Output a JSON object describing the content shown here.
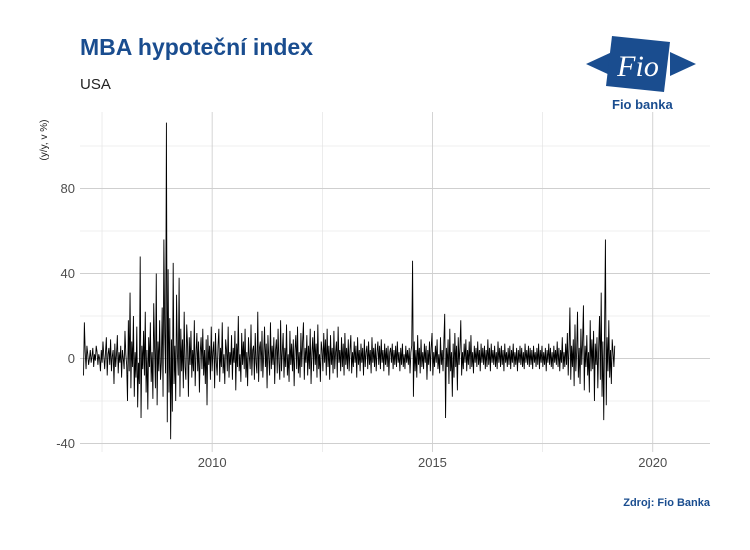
{
  "header": {
    "title": "MBA hypoteční index",
    "subtitle": "USA"
  },
  "logo": {
    "mark_text": "Fio",
    "caption": "Fio banka",
    "color": "#1a4d8f"
  },
  "footer": {
    "source": "Zdroj: Fio Banka"
  },
  "chart_data": {
    "type": "line",
    "ylabel": "(y/y, v %)",
    "xlim": [
      2007.0,
      2021.3
    ],
    "ylim": [
      -44,
      116
    ],
    "x_ticks": [
      2010,
      2015,
      2020
    ],
    "y_ticks": [
      -40,
      0,
      40,
      80
    ],
    "grid": true,
    "line_color": "#000000",
    "series": [
      {
        "step_years": 0.0192,
        "x_start": 2007.08,
        "values": [
          -8,
          17,
          3,
          -5,
          6,
          2,
          -3,
          0,
          4,
          -2,
          1,
          5,
          -4,
          2,
          -1,
          6,
          3,
          -3,
          2,
          0,
          -6,
          4,
          -2,
          8,
          1,
          -5,
          3,
          10,
          -8,
          2,
          5,
          -3,
          9,
          -6,
          1,
          4,
          -12,
          7,
          -4,
          2,
          11,
          -7,
          3,
          -2,
          6,
          -9,
          4,
          0,
          -5,
          13,
          2,
          -3,
          -20,
          18,
          -6,
          31,
          -14,
          8,
          -4,
          20,
          -18,
          3,
          -9,
          15,
          -23,
          -2,
          -12,
          48,
          -28,
          6,
          -5,
          13,
          -8,
          22,
          -16,
          4,
          -24,
          10,
          -4,
          17,
          -11,
          3,
          -19,
          26,
          5,
          -14,
          40,
          -22,
          8,
          -6,
          18,
          -10,
          -2,
          24,
          -18,
          56,
          12,
          -7,
          111,
          -30,
          42,
          -16,
          19,
          -38,
          9,
          -25,
          45,
          -12,
          6,
          -20,
          30,
          2,
          -8,
          38,
          -18,
          14,
          -6,
          9,
          -14,
          22,
          -4,
          -10,
          16,
          6,
          -18,
          10,
          -3,
          13,
          -9,
          4,
          -6,
          18,
          -13,
          2,
          12,
          -6,
          8,
          -16,
          3,
          10,
          -5,
          14,
          -8,
          4,
          -12,
          9,
          -22,
          11,
          -3,
          6,
          -10,
          15,
          -6,
          3,
          8,
          -14,
          12,
          -2,
          -8,
          6,
          14,
          -11,
          5,
          -4,
          17,
          -7,
          2,
          -12,
          9,
          4,
          -6,
          15,
          -9,
          3,
          -3,
          11,
          -10,
          5,
          -2,
          13,
          -15,
          7,
          -4,
          20,
          -6,
          2,
          -11,
          12,
          -3,
          8,
          -5,
          14,
          -9,
          3,
          -13,
          10,
          1,
          -5,
          16,
          -8,
          4,
          6,
          -10,
          12,
          -2,
          -7,
          22,
          -11,
          5,
          8,
          -6,
          13,
          -9,
          2,
          15,
          -4,
          7,
          -14,
          11,
          0,
          -8,
          17,
          -5,
          6,
          -3,
          10,
          -12,
          4,
          9,
          -7,
          14,
          -2,
          -10,
          18,
          -6,
          3,
          12,
          -9,
          5,
          -4,
          16,
          -8,
          2,
          -11,
          13,
          -3,
          7,
          -6,
          9,
          -13,
          4,
          11,
          -5,
          15,
          -7,
          3,
          -9,
          12,
          -4,
          8,
          17,
          -10,
          5,
          -2,
          11,
          -8,
          6,
          -5,
          14,
          -12,
          3,
          10,
          -6,
          13,
          -3,
          7,
          -9,
          16,
          -5,
          2,
          -11,
          8,
          4,
          -6,
          12,
          -2,
          9,
          -8,
          14,
          -4,
          6,
          -10,
          11,
          -3,
          5,
          -7,
          13,
          -5,
          3,
          8,
          -9,
          15,
          -2,
          4,
          -6,
          10,
          -4,
          7,
          -8,
          12,
          -3,
          5,
          -5,
          9,
          -6,
          4,
          11,
          -7,
          3,
          -4,
          8,
          -2,
          6,
          -9,
          10,
          -3,
          4,
          -6,
          7,
          -2,
          5,
          -8,
          9,
          -4,
          3,
          6,
          -5,
          8,
          -3,
          4,
          -7,
          10,
          -2,
          5,
          -4,
          7,
          -6,
          3,
          8,
          -3,
          6,
          -5,
          9,
          -2,
          4,
          -6,
          7,
          -3,
          5,
          -4,
          6,
          -8,
          3,
          5,
          -2,
          7,
          -5,
          4,
          -3,
          6,
          -4,
          8,
          -2,
          3,
          -6,
          5,
          -3,
          7,
          -4,
          2,
          -5,
          6,
          -2,
          4,
          -3,
          5,
          -7,
          3,
          6,
          46,
          -18,
          8,
          -6,
          4,
          -9,
          11,
          -3,
          5,
          -7,
          9,
          -4,
          3,
          -5,
          7,
          -2,
          6,
          -10,
          4,
          -3,
          8,
          -6,
          5,
          12,
          -8,
          3,
          -4,
          6,
          -2,
          9,
          -5,
          2,
          -7,
          10,
          -3,
          4,
          -6,
          8,
          21,
          -28,
          5,
          -4,
          9,
          -12,
          14,
          -6,
          3,
          -18,
          7,
          -9,
          12,
          -4,
          6,
          -15,
          10,
          -3,
          5,
          18,
          -8,
          3,
          -5,
          7,
          -2,
          9,
          -6,
          4,
          -3,
          8,
          -5,
          11,
          -4,
          3,
          -7,
          6,
          -2,
          5,
          -4,
          8,
          -3,
          4,
          -6,
          7,
          -2,
          5,
          -3,
          6,
          -5,
          4,
          -4,
          9,
          -3,
          5,
          -6,
          7,
          -2,
          4,
          -3,
          6,
          -4,
          3,
          -5,
          8,
          -2,
          5,
          -4,
          6,
          -3,
          4,
          -6,
          7,
          -2,
          3,
          -4,
          5,
          -3,
          6,
          -5,
          4,
          -2,
          7,
          -4,
          3,
          -3,
          5,
          -6,
          4,
          -2,
          6,
          -3,
          5,
          -4,
          3,
          -5,
          7,
          -2,
          4,
          -3,
          6,
          -4,
          5,
          -3,
          4,
          -5,
          6,
          -2,
          3,
          -4,
          5,
          -3,
          7,
          -5,
          4,
          -2,
          6,
          -4,
          3,
          -3,
          5,
          -6,
          4,
          -2,
          7,
          -3,
          5,
          -4,
          3,
          -5,
          6,
          -2,
          4,
          -3,
          8,
          -4,
          5,
          -6,
          4,
          -2,
          10,
          -5,
          3,
          -4,
          7,
          -3,
          12,
          -8,
          5,
          24,
          -10,
          6,
          -4,
          9,
          -13,
          16,
          -6,
          3,
          22,
          -9,
          5,
          -12,
          14,
          -3,
          8,
          25,
          -15,
          6,
          -4,
          11,
          -8,
          3,
          -16,
          18,
          -6,
          9,
          -5,
          13,
          -20,
          7,
          -3,
          10,
          -14,
          5,
          20,
          -10,
          31,
          -18,
          8,
          -29,
          13,
          56,
          -22,
          10,
          -6,
          18,
          -9,
          4,
          -12,
          9,
          3,
          -4,
          6
        ]
      }
    ]
  }
}
